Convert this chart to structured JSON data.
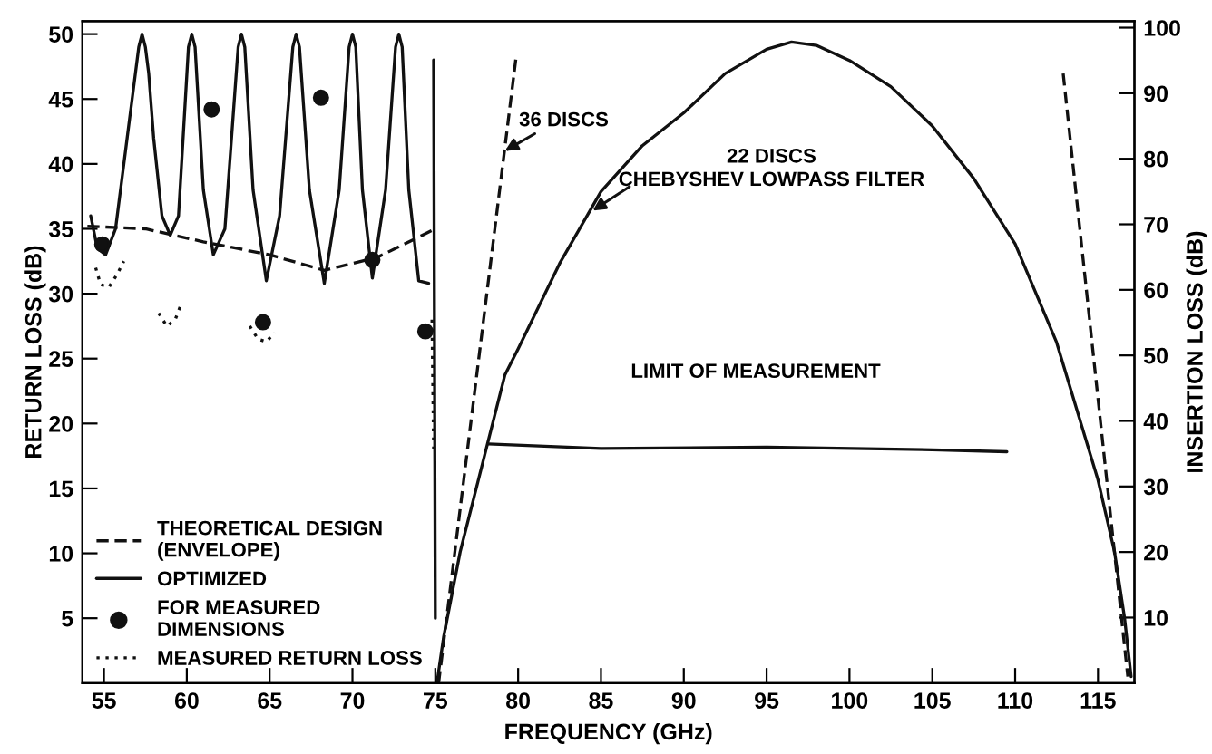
{
  "chart_data": {
    "type": "line",
    "xlabel": "FREQUENCY (GHz)",
    "ylabel": "RETURN LOSS (dB)",
    "y2label": "INSERTION LOSS (dB)",
    "xlim": [
      53.7,
      117.2
    ],
    "xticks": [
      55,
      60,
      65,
      70,
      75,
      80,
      85,
      90,
      95,
      100,
      105,
      110,
      115
    ],
    "ylim": [
      0,
      51
    ],
    "yticks": [
      5,
      10,
      15,
      20,
      25,
      30,
      35,
      40,
      45,
      50
    ],
    "y2lim": [
      0,
      101
    ],
    "y2ticks": [
      10,
      20,
      30,
      40,
      50,
      60,
      70,
      80,
      90,
      100
    ],
    "grid": false,
    "legend": "bottom left",
    "series": [
      {
        "name": "THEORETICAL DESIGN\n(ENVELOPE)",
        "color": "#111111",
        "line_style": "dashed",
        "x": [
          54.0,
          57.5,
          61.0,
          65.0,
          68.3,
          71.5,
          75.0
        ],
        "values": [
          35.2,
          35.0,
          34.0,
          33.0,
          31.8,
          32.8,
          35.0
        ]
      },
      {
        "name": "OPTIMIZED",
        "color": "#111111",
        "line_style": "solid",
        "x": [
          54.2,
          54.6,
          55.1,
          55.7,
          56.4,
          56.9,
          57.1,
          57.3,
          57.5,
          57.7,
          58.0,
          58.5,
          59.0,
          59.5,
          60.1,
          60.3,
          60.5,
          61.0,
          61.6,
          62.3,
          63.1,
          63.3,
          63.5,
          64.0,
          64.8,
          65.6,
          66.4,
          66.6,
          66.8,
          67.4,
          68.3,
          69.2,
          69.8,
          70.0,
          70.2,
          70.6,
          71.2,
          72.0,
          72.6,
          72.8,
          73.0,
          73.4,
          74.0,
          74.6
        ],
        "values": [
          36,
          33.5,
          33,
          35,
          42,
          47,
          49,
          50,
          49,
          47,
          42,
          36,
          34.5,
          36,
          49,
          50,
          49,
          38,
          33,
          35,
          49,
          50,
          49,
          38,
          31,
          36,
          49,
          50,
          49,
          38,
          30.8,
          38,
          49,
          50,
          49,
          38,
          31.2,
          38,
          49,
          50,
          49,
          38,
          31,
          30.8
        ]
      },
      {
        "color": "#111111",
        "line_style": "solid",
        "x": [
          74.9,
          75.0
        ],
        "values": [
          48,
          5
        ]
      },
      {
        "name": "FOR MEASURED\nDIMENSIONS",
        "type": "scatter",
        "marker": "circle",
        "color": "#111111",
        "x": [
          54.9,
          61.5,
          64.6,
          68.1,
          71.2,
          74.4
        ],
        "values": [
          33.8,
          44.2,
          27.8,
          45.1,
          32.6,
          27.1
        ]
      },
      {
        "name": "MEASURED RETURN LOSS",
        "color": "#111111",
        "line_style": "dotted",
        "x": [
          54.5,
          54.8,
          55.3,
          55.8,
          56.2
        ],
        "values": [
          32.0,
          30.7,
          30.5,
          31.5,
          32.5
        ]
      },
      {
        "color": "#111111",
        "line_style": "dotted",
        "x": [
          58.3,
          58.8,
          59.3,
          59.6
        ],
        "values": [
          28.5,
          27.5,
          28.0,
          29.0
        ]
      },
      {
        "color": "#111111",
        "line_style": "dotted",
        "x": [
          63.8,
          64.3,
          64.8,
          65.3
        ],
        "values": [
          27.5,
          26.5,
          26.3,
          27.0
        ]
      },
      {
        "color": "#111111",
        "line_style": "dotted",
        "x": [
          74.8,
          74.9
        ],
        "values": [
          28,
          18
        ]
      },
      {
        "axis": "y2",
        "color": "#111111",
        "line_style": "solid",
        "x": [
          75.1,
          75.5,
          76.5,
          77.5,
          78.2,
          79.2,
          80,
          82.5,
          85,
          87.5,
          90,
          92.5,
          95,
          96.5,
          98,
          100,
          102.5,
          105,
          107.5,
          110,
          112.5,
          115,
          116,
          116.6,
          117
        ],
        "values": [
          0,
          7,
          20,
          30,
          37,
          47,
          51,
          64,
          75,
          82,
          87,
          93,
          96.7,
          97.8,
          97.3,
          95,
          91,
          85,
          77,
          67,
          52,
          31,
          20,
          10,
          1
        ]
      },
      {
        "axis": "y2",
        "color": "#111111",
        "line_style": "dashed",
        "x": [
          75.2,
          79.9
        ],
        "values": [
          0,
          96
        ]
      },
      {
        "axis": "y2",
        "color": "#111111",
        "line_style": "dashed",
        "x": [
          112.9,
          116.8
        ],
        "values": [
          93,
          1
        ]
      },
      {
        "axis": "y2",
        "color": "#111111",
        "line_style": "solid",
        "x": [
          78.2,
          85,
          95,
          105,
          109.5
        ],
        "values": [
          36.5,
          35.8,
          36.0,
          35.6,
          35.3
        ]
      }
    ],
    "annotations": [
      {
        "text": "36 DISCS",
        "x": 79.2,
        "y": 41
      },
      {
        "text": "22 DISCS\nCHEBYSHEV LOWPASS FILTER",
        "x": 84.5,
        "y": 36.4
      },
      "LIMIT OF MEASUREMENT"
    ]
  }
}
